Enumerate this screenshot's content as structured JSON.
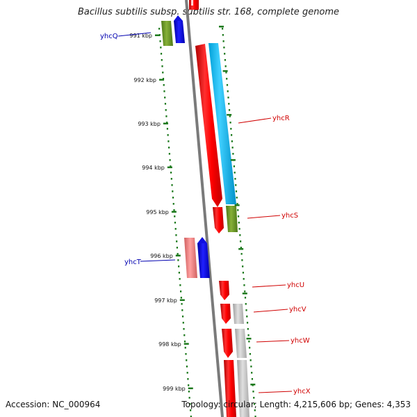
{
  "title": "Bacillus subtilis subsp. subtilis str. 168, complete genome",
  "footer": {
    "accession": "Accession: NC_000964",
    "summary": "Topology: circular; Length: 4,215,606 bp; Genes: 4,353"
  },
  "colors": {
    "tick": "#1e7a1e",
    "backbone": "#808080",
    "label_forward": "#d00000",
    "label_reverse": "#0000b0"
  },
  "scale_labels": [
    "991 kbp",
    "992 kbp",
    "993 kbp",
    "994 kbp",
    "995 kbp",
    "996 kbp",
    "997 kbp",
    "998 kbp",
    "999 kbp"
  ],
  "genes": [
    {
      "name": "yhcQ",
      "strand": "reverse"
    },
    {
      "name": "yhcR",
      "strand": "forward"
    },
    {
      "name": "yhcS",
      "strand": "forward"
    },
    {
      "name": "yhcT",
      "strand": "reverse"
    },
    {
      "name": "yhcU",
      "strand": "forward"
    },
    {
      "name": "yhcV",
      "strand": "forward"
    },
    {
      "name": "yhcW",
      "strand": "forward"
    },
    {
      "name": "yhcX",
      "strand": "forward"
    }
  ]
}
